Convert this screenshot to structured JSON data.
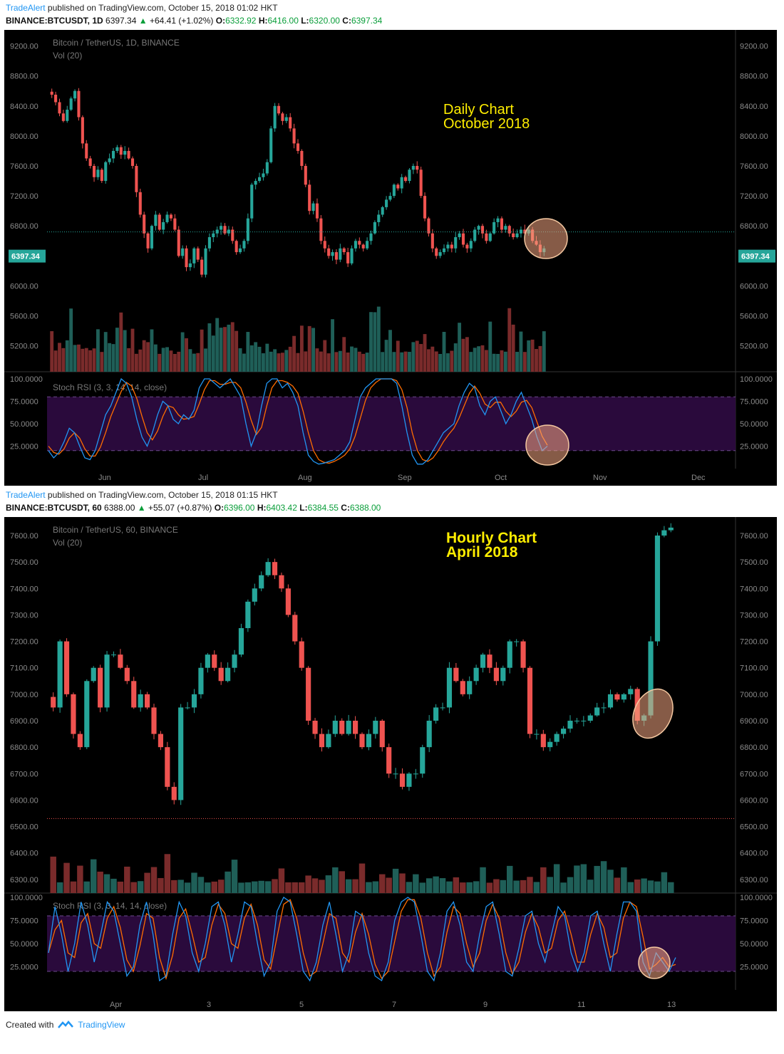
{
  "top": {
    "publisher": "TradeAlert",
    "published_text": "published on TradingView.com, October 15, 2018 01:02 HKT",
    "symbol": "BINANCE:BTCUSDT, 1D",
    "price": "6397.34",
    "change": "+64.41 (+1.02%)",
    "o_label": "O:",
    "o": "6332.92",
    "h_label": "H:",
    "h": "6416.00",
    "l_label": "L:",
    "l": "6320.00",
    "c_label": "C:",
    "c": "6397.34"
  },
  "bottom": {
    "publisher": "TradeAlert",
    "published_text": "published on TradingView.com, October 15, 2018 01:15 HKT",
    "symbol": "BINANCE:BTCUSDT, 60",
    "price": "6388.00",
    "change": "+55.07 (+0.87%)",
    "o_label": "O:",
    "o": "6396.00",
    "h_label": "H:",
    "h": "6403.42",
    "l_label": "L:",
    "l": "6384.55",
    "c_label": "C:",
    "c": "6388.00"
  },
  "footer": {
    "created_with": "Created with",
    "brand": "TradingView"
  },
  "colors": {
    "up": "#26a69a",
    "down": "#ef5350",
    "vol_up": "#1f5f58",
    "vol_down": "#7a2b2b",
    "rsi_k": "#2196f3",
    "rsi_d": "#ff6d00",
    "rsi_band": "#2a0a3c",
    "annotation": "#ffee00",
    "circle": "#f4a582"
  },
  "chart_data": [
    {
      "type": "candlestick",
      "title": "Bitcoin / TetherUS, 1D, BINANCE",
      "indicator_label": "Vol (20)",
      "annotation": [
        "Daily Chart",
        "October 2018"
      ],
      "ylim": [
        4950,
        9300
      ],
      "yticks": [
        "9200.00",
        "8800.00",
        "8400.00",
        "8000.00",
        "7600.00",
        "7200.00",
        "6800.00",
        "6000.00",
        "5600.00",
        "5200.00"
      ],
      "ytick_values": [
        9200,
        8800,
        8400,
        8000,
        7600,
        7200,
        6800,
        6000,
        5600,
        5200
      ],
      "last_price_label": "6397.34",
      "x_labels": [
        "Jun",
        "Jul",
        "Aug",
        "Sep",
        "Oct",
        "Nov",
        "Dec"
      ],
      "closes": [
        8550,
        8450,
        8300,
        8200,
        8350,
        8500,
        8600,
        8250,
        7900,
        7700,
        7600,
        7450,
        7550,
        7400,
        7650,
        7700,
        7800,
        7850,
        7750,
        7800,
        7700,
        7600,
        7250,
        6950,
        6700,
        6500,
        6800,
        6950,
        6750,
        6850,
        6950,
        6900,
        6750,
        6400,
        6500,
        6250,
        6300,
        6500,
        6350,
        6150,
        6500,
        6650,
        6700,
        6750,
        6800,
        6700,
        6750,
        6600,
        6450,
        6500,
        6600,
        6900,
        7350,
        7400,
        7450,
        7500,
        7650,
        8100,
        8400,
        8300,
        8200,
        8250,
        8100,
        7900,
        7800,
        7600,
        7350,
        7000,
        7100,
        6900,
        6600,
        6500,
        6400,
        6450,
        6350,
        6500,
        6450,
        6300,
        6500,
        6600,
        6550,
        6500,
        6600,
        6700,
        6850,
        6950,
        7050,
        7150,
        7200,
        7350,
        7300,
        7450,
        7400,
        7550,
        7600,
        7550,
        7200,
        6900,
        6700,
        6500,
        6400,
        6450,
        6500,
        6550,
        6500,
        6650,
        6700,
        6550,
        6500,
        6600,
        6750,
        6800,
        6700,
        6600,
        6700,
        6850,
        6900,
        6750,
        6800,
        6700,
        6650,
        6700,
        6750,
        6700,
        6750,
        6600,
        6550,
        6450,
        6500
      ],
      "rsi_k": [
        20,
        12,
        18,
        30,
        45,
        40,
        25,
        12,
        10,
        20,
        40,
        60,
        70,
        85,
        100,
        95,
        80,
        55,
        35,
        25,
        40,
        60,
        75,
        70,
        55,
        50,
        60,
        55,
        65,
        90,
        100,
        100,
        95,
        90,
        95,
        100,
        90,
        80,
        50,
        25,
        40,
        70,
        95,
        100,
        100,
        90,
        95,
        85,
        70,
        40,
        15,
        8,
        5,
        6,
        8,
        10,
        15,
        20,
        30,
        55,
        80,
        90,
        95,
        100,
        100,
        100,
        100,
        95,
        70,
        40,
        15,
        5,
        5,
        10,
        20,
        30,
        40,
        45,
        50,
        70,
        85,
        95,
        90,
        70,
        60,
        75,
        80,
        65,
        50,
        60,
        75,
        85,
        70,
        55,
        35,
        20,
        25
      ],
      "rsi_d": [
        25,
        18,
        16,
        22,
        34,
        40,
        34,
        22,
        14,
        14,
        24,
        40,
        58,
        72,
        86,
        96,
        92,
        78,
        58,
        40,
        32,
        42,
        58,
        70,
        68,
        60,
        55,
        56,
        58,
        72,
        88,
        98,
        98,
        94,
        94,
        96,
        96,
        90,
        74,
        54,
        38,
        46,
        70,
        90,
        98,
        98,
        96,
        92,
        84,
        64,
        40,
        20,
        10,
        7,
        6,
        8,
        11,
        15,
        22,
        36,
        56,
        76,
        90,
        96,
        100,
        100,
        100,
        98,
        88,
        68,
        40,
        20,
        10,
        8,
        12,
        20,
        30,
        38,
        45,
        56,
        70,
        84,
        92,
        84,
        72,
        68,
        74,
        74,
        64,
        58,
        64,
        74,
        76,
        68,
        52,
        36,
        26
      ]
    },
    {
      "type": "candlestick",
      "title": "Bitcoin / TetherUS, 60, BINANCE",
      "indicator_label": "Vol (20)",
      "annotation": [
        "Hourly Chart",
        "April 2018"
      ],
      "ylim": [
        6270,
        7670
      ],
      "yticks": [
        "7600.00",
        "7500.00",
        "7400.00",
        "7300.00",
        "7200.00",
        "7100.00",
        "7000.00",
        "6900.00",
        "6800.00",
        "6700.00",
        "6600.00",
        "6500.00",
        "6400.00",
        "6300.00"
      ],
      "ytick_values": [
        7600,
        7500,
        7400,
        7300,
        7200,
        7100,
        7000,
        6900,
        6800,
        6700,
        6600,
        6500,
        6400,
        6300
      ],
      "dotted_level": 6530,
      "x_labels": [
        "Apr",
        "3",
        "5",
        "7",
        "9",
        "11",
        "13"
      ],
      "closes": [
        6950,
        7200,
        7000,
        6850,
        6800,
        7050,
        7100,
        6950,
        7150,
        7150,
        7100,
        7050,
        6950,
        7000,
        6950,
        6850,
        6800,
        6650,
        6600,
        6950,
        6950,
        7000,
        7100,
        7150,
        7100,
        7050,
        7100,
        7150,
        7250,
        7350,
        7400,
        7450,
        7500,
        7450,
        7400,
        7300,
        7200,
        7100,
        6900,
        6850,
        6800,
        6850,
        6900,
        6850,
        6900,
        6850,
        6800,
        6850,
        6900,
        6800,
        6700,
        6700,
        6650,
        6700,
        6700,
        6800,
        6900,
        6950,
        6950,
        7100,
        7050,
        7000,
        7050,
        7100,
        7150,
        7100,
        7050,
        7100,
        7200,
        7200,
        7100,
        6850,
        6850,
        6800,
        6820,
        6850,
        6870,
        6900,
        6900,
        6900,
        6920,
        6950,
        6950,
        7000,
        6980,
        7000,
        7020,
        6900,
        6920,
        7200,
        7600,
        7620,
        7630
      ],
      "rsi_k": [
        40,
        90,
        60,
        20,
        50,
        95,
        70,
        30,
        60,
        95,
        85,
        50,
        15,
        25,
        70,
        95,
        60,
        10,
        15,
        60,
        95,
        80,
        40,
        20,
        50,
        90,
        95,
        70,
        30,
        60,
        95,
        90,
        50,
        15,
        30,
        85,
        100,
        95,
        60,
        20,
        10,
        30,
        70,
        95,
        60,
        20,
        40,
        85,
        80,
        40,
        15,
        10,
        30,
        75,
        95,
        100,
        95,
        60,
        20,
        10,
        40,
        85,
        95,
        70,
        30,
        20,
        60,
        90,
        95,
        60,
        20,
        15,
        45,
        80,
        85,
        50,
        30,
        60,
        90,
        80,
        40,
        20,
        40,
        80,
        85,
        50,
        20,
        60,
        95,
        95,
        85,
        30,
        15,
        40,
        30,
        20,
        35
      ]
    }
  ]
}
